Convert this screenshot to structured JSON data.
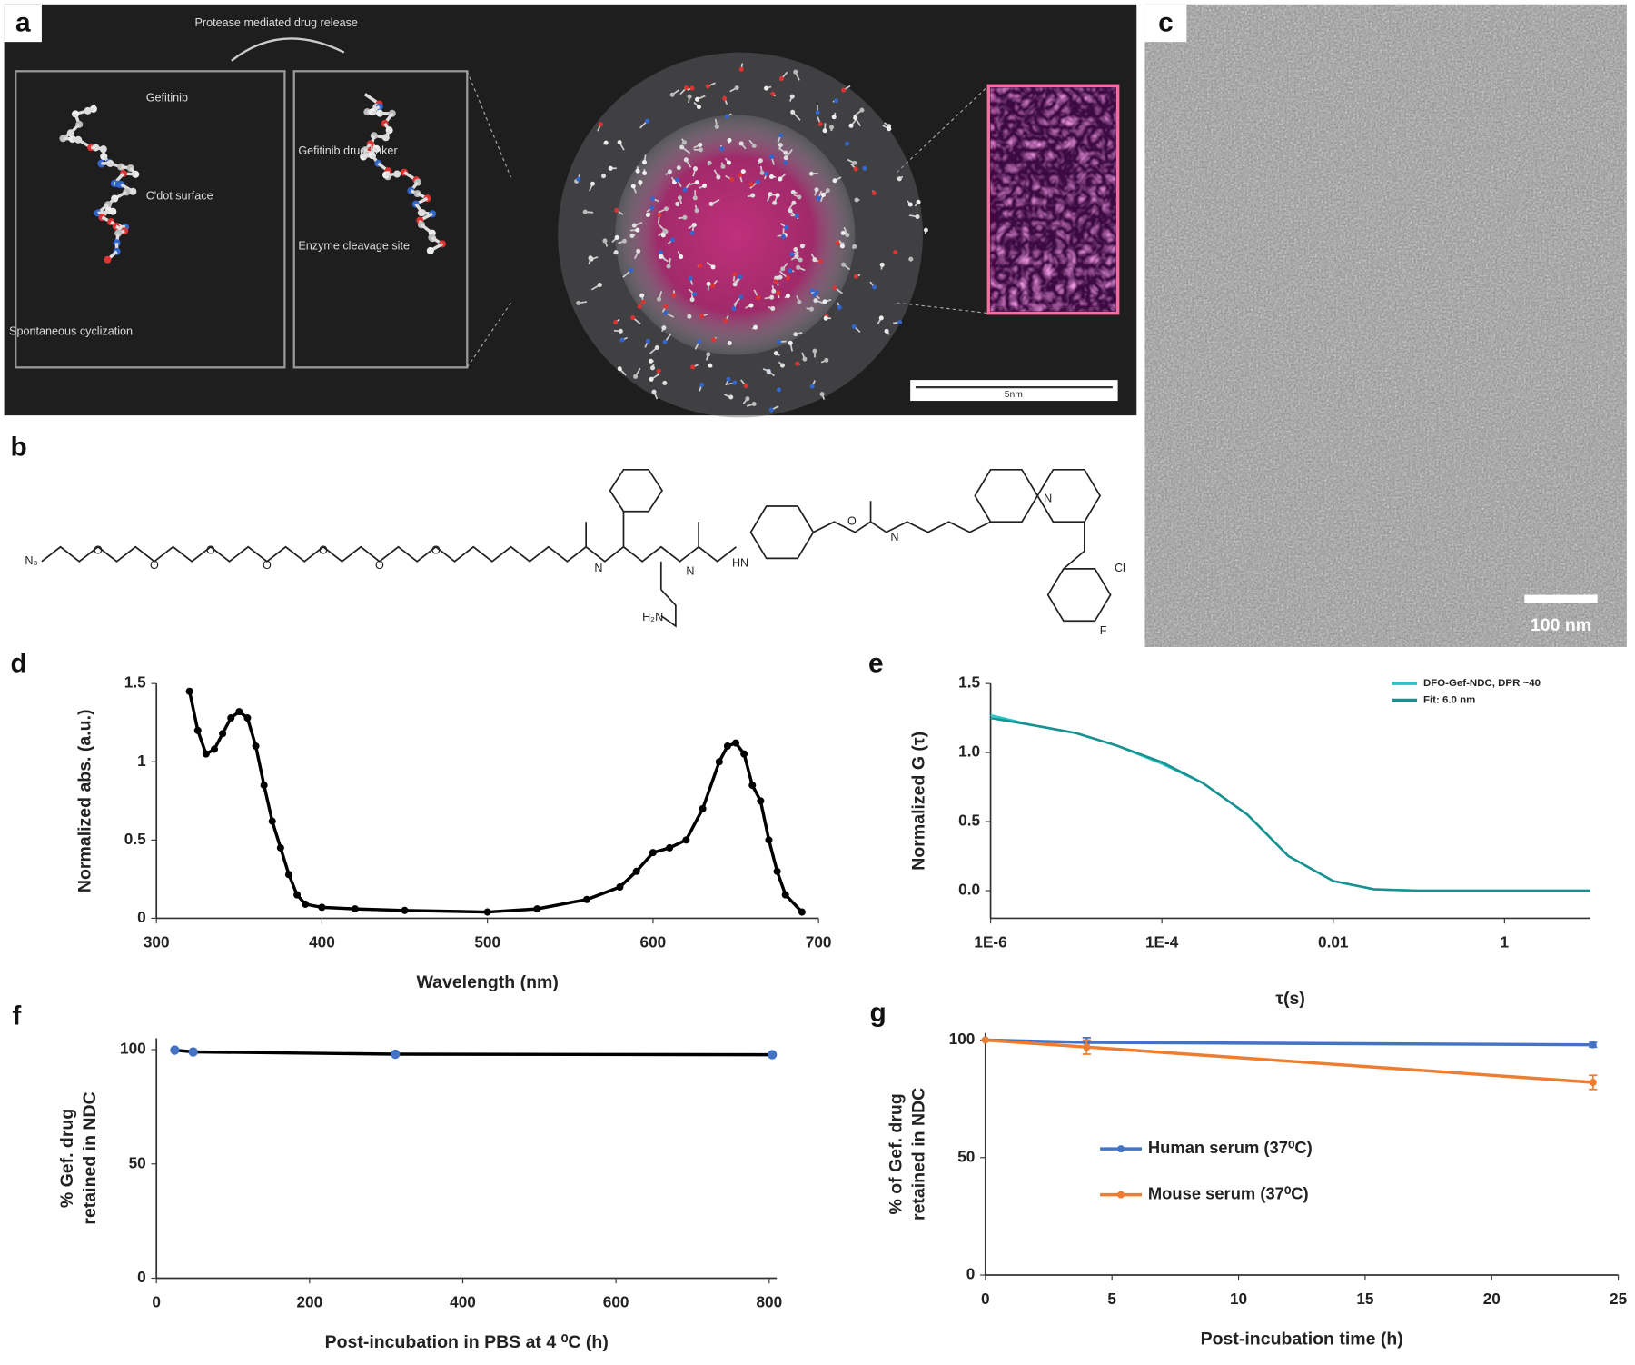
{
  "panel_labels": [
    "a",
    "b",
    "c",
    "d",
    "e",
    "f",
    "g"
  ],
  "panel_a": {
    "title": "Protease mediated drug release",
    "labels": [
      "Gefitinib",
      "C'dot surface",
      "Spontaneous cyclization",
      "Gefitinib drug-linker",
      "Enzyme cleavage site"
    ],
    "scale_bar": "5nm"
  },
  "panel_b": {
    "atoms": [
      "N₃",
      "O",
      "O",
      "O",
      "O",
      "O",
      "O",
      "O",
      "H₂N",
      "N",
      "N",
      "HN",
      "O",
      "N",
      "N",
      "Cl",
      "F"
    ]
  },
  "panel_c": {
    "scale_bar": "100 nm"
  },
  "chart_data": [
    {
      "type": "line",
      "xlabel": "Wavelength (nm)",
      "ylabel": "Normalized abs. (a.u.)",
      "x": [
        320,
        325,
        330,
        335,
        340,
        345,
        350,
        355,
        360,
        365,
        370,
        375,
        380,
        385,
        390,
        400,
        420,
        450,
        500,
        530,
        560,
        580,
        590,
        600,
        610,
        620,
        630,
        640,
        645,
        650,
        655,
        660,
        665,
        670,
        675,
        680,
        690
      ],
      "series": [
        {
          "color": "#000000",
          "values": [
            1.45,
            1.2,
            1.05,
            1.08,
            1.18,
            1.28,
            1.32,
            1.28,
            1.1,
            0.85,
            0.62,
            0.45,
            0.28,
            0.15,
            0.09,
            0.07,
            0.06,
            0.05,
            0.04,
            0.06,
            0.12,
            0.2,
            0.3,
            0.42,
            0.45,
            0.5,
            0.7,
            1.0,
            1.1,
            1.12,
            1.05,
            0.85,
            0.75,
            0.5,
            0.3,
            0.15,
            0.04
          ]
        }
      ],
      "markers": true,
      "xlim": [
        300,
        700
      ],
      "xticks": [
        300,
        400,
        500,
        600,
        700
      ],
      "ylim": [
        0,
        1.5
      ],
      "yticks": [
        0,
        0.5,
        1,
        1.5
      ],
      "grid": false
    },
    {
      "type": "line",
      "xlabel": "τ(s)",
      "ylabel": "Normalized G (τ)",
      "log_x": true,
      "x": [
        1e-06,
        3e-06,
        1e-05,
        3e-05,
        0.0001,
        0.0003,
        0.001,
        0.003,
        0.01,
        0.03,
        0.1,
        1,
        10
      ],
      "series": [
        {
          "name": "DFO-Gef-NDC, DPR ~40",
          "color": "#22c8c8",
          "values": [
            1.27,
            1.2,
            1.14,
            1.05,
            0.92,
            0.78,
            0.55,
            0.25,
            0.07,
            0.01,
            0,
            0,
            0
          ]
        },
        {
          "name": "Fit: 6.0 nm",
          "color": "#1a9090",
          "values": [
            1.25,
            1.2,
            1.14,
            1.05,
            0.93,
            0.78,
            0.55,
            0.25,
            0.07,
            0.01,
            0,
            0,
            0
          ]
        }
      ],
      "markers": false,
      "legend": "upper right",
      "xlim": [
        1e-06,
        10
      ],
      "xticks": [
        {
          "value": 1e-06,
          "label": "1E-6"
        },
        {
          "value": 0.0001,
          "label": "1E-4"
        },
        0.01,
        1
      ],
      "ylim": [
        -0.2,
        1.5
      ],
      "yticks": [
        {
          "value": 0,
          "label": "0.0"
        },
        {
          "value": 0.5,
          "label": "0.5"
        },
        {
          "value": 1,
          "label": "1.0"
        },
        {
          "value": 1.5,
          "label": "1.5"
        }
      ],
      "grid": false
    },
    {
      "type": "line",
      "xlabel": "Post-incubation in PBS at 4 ⁰C (h)",
      "ylabel": [
        "% Gef. drug",
        "retained in NDC"
      ],
      "x": [
        24,
        48,
        312,
        804
      ],
      "series": [
        {
          "color": "#000000",
          "marker_color": "#4472c4",
          "values": [
            99.8,
            99,
            98,
            97.8
          ]
        }
      ],
      "markers": true,
      "xlim": [
        0,
        810
      ],
      "xticks": [
        0,
        200,
        400,
        600,
        800
      ],
      "ylim": [
        0,
        105
      ],
      "yticks": [
        0,
        50,
        100
      ],
      "grid": false
    },
    {
      "type": "line",
      "xlabel": "Post-incubation time (h)",
      "ylabel": [
        "% of Gef. drug",
        "retained in NDC"
      ],
      "x": [
        0,
        4,
        24
      ],
      "series": [
        {
          "name": "Human serum (37⁰C)",
          "color": "#4472c4",
          "values": [
            100,
            99,
            98
          ],
          "errors": [
            0,
            2,
            1
          ]
        },
        {
          "name": "Mouse serum (37⁰C)",
          "color": "#ed7d31",
          "values": [
            100,
            97,
            82
          ],
          "errors": [
            0,
            3,
            3
          ]
        }
      ],
      "markers": true,
      "legend": "center left",
      "xlim": [
        0,
        25
      ],
      "xticks": [
        0,
        5,
        10,
        15,
        20,
        25
      ],
      "ylim": [
        0,
        103
      ],
      "yticks": [
        0,
        50,
        100
      ],
      "grid": false
    }
  ]
}
